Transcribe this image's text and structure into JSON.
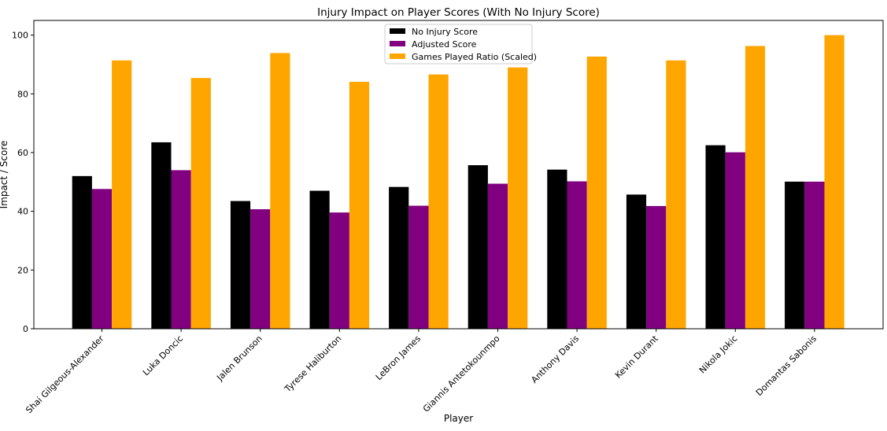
{
  "chart_data": {
    "type": "bar",
    "title": "Injury Impact on Player Scores (With No Injury Score)",
    "xlabel": "Player",
    "ylabel": "Impact / Score",
    "ylim": [
      0,
      105
    ],
    "yticks": [
      0,
      20,
      40,
      60,
      80,
      100
    ],
    "grid": false,
    "legend_position": "top-center",
    "categories": [
      "Shai Gilgeous-Alexander",
      "Luka Doncic",
      "Jalen Brunson",
      "Tyrese Haliburton",
      "LeBron James",
      "Giannis Antetokounmpo",
      "Anthony Davis",
      "Kevin Durant",
      "Nikola Jokic",
      "Domantas Sabonis"
    ],
    "series": [
      {
        "name": "No Injury Score",
        "color": "#000000",
        "values": [
          52.0,
          63.5,
          43.5,
          47.0,
          48.3,
          55.7,
          54.2,
          45.7,
          62.5,
          50.1
        ]
      },
      {
        "name": "Adjusted Score",
        "color": "#800080",
        "values": [
          47.6,
          54.0,
          40.7,
          39.6,
          41.9,
          49.4,
          50.2,
          41.8,
          60.1,
          50.1
        ]
      },
      {
        "name": "Games Played Ratio (Scaled)",
        "color": "#FFA500",
        "values": [
          91.4,
          85.4,
          93.9,
          84.1,
          86.6,
          89.0,
          92.7,
          91.4,
          96.3,
          100.0
        ]
      }
    ]
  }
}
